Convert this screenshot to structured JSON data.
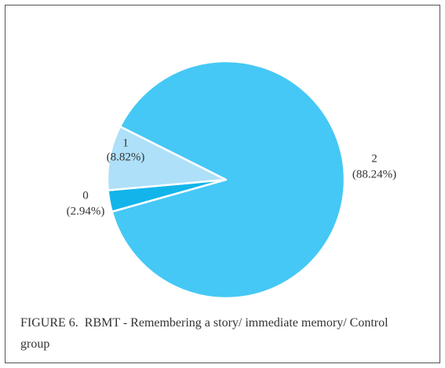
{
  "chart_data": {
    "type": "pie",
    "title": "FIGURE 6.  RBMT - Remembering a story/ immediate memory/ Control group",
    "categories": [
      "0",
      "1",
      "2"
    ],
    "values": [
      2.94,
      8.82,
      88.24
    ],
    "value_labels": [
      "(2.94%)",
      "(8.82%)",
      "(88.24%)"
    ],
    "colors": [
      "#12b5ea",
      "#aee0f9",
      "#45c8f5"
    ]
  }
}
